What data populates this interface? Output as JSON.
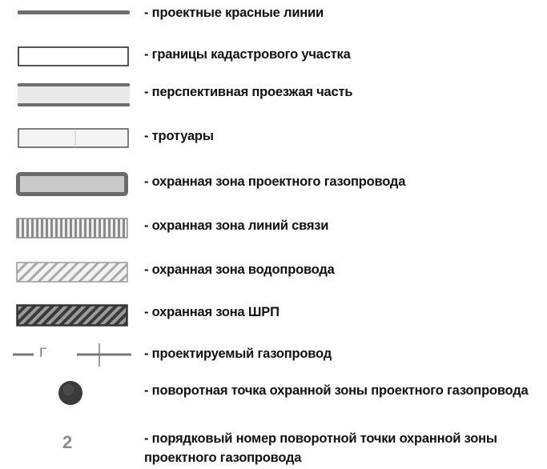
{
  "legend": {
    "items": [
      {
        "id": "red-lines",
        "label": "-  проектные красные линии"
      },
      {
        "id": "cadastral",
        "label": "- границы кадастрового участка"
      },
      {
        "id": "carriageway",
        "label": "-  перспективная проезжая часть"
      },
      {
        "id": "sidewalks",
        "label": "- тротуары"
      },
      {
        "id": "gas-zone",
        "label": "-  охранная зона проектного газопровода"
      },
      {
        "id": "comm-zone",
        "label": "- охранная зона  линий связи"
      },
      {
        "id": "water-zone",
        "label": "-  охранная зона водопровода"
      },
      {
        "id": "shrp-zone",
        "label": "-  охранная зона ШРП"
      },
      {
        "id": "gas-pipe",
        "label": "- проектируемый газопровод",
        "symbol_letter": "Г"
      },
      {
        "id": "turn-point",
        "label": "- поворотная точка охранной зоны проектного газопровода"
      },
      {
        "id": "turn-number",
        "label": "- порядковый номер поворотной  точки охранной зоны проектного газопровода",
        "symbol_number": "2"
      }
    ]
  }
}
